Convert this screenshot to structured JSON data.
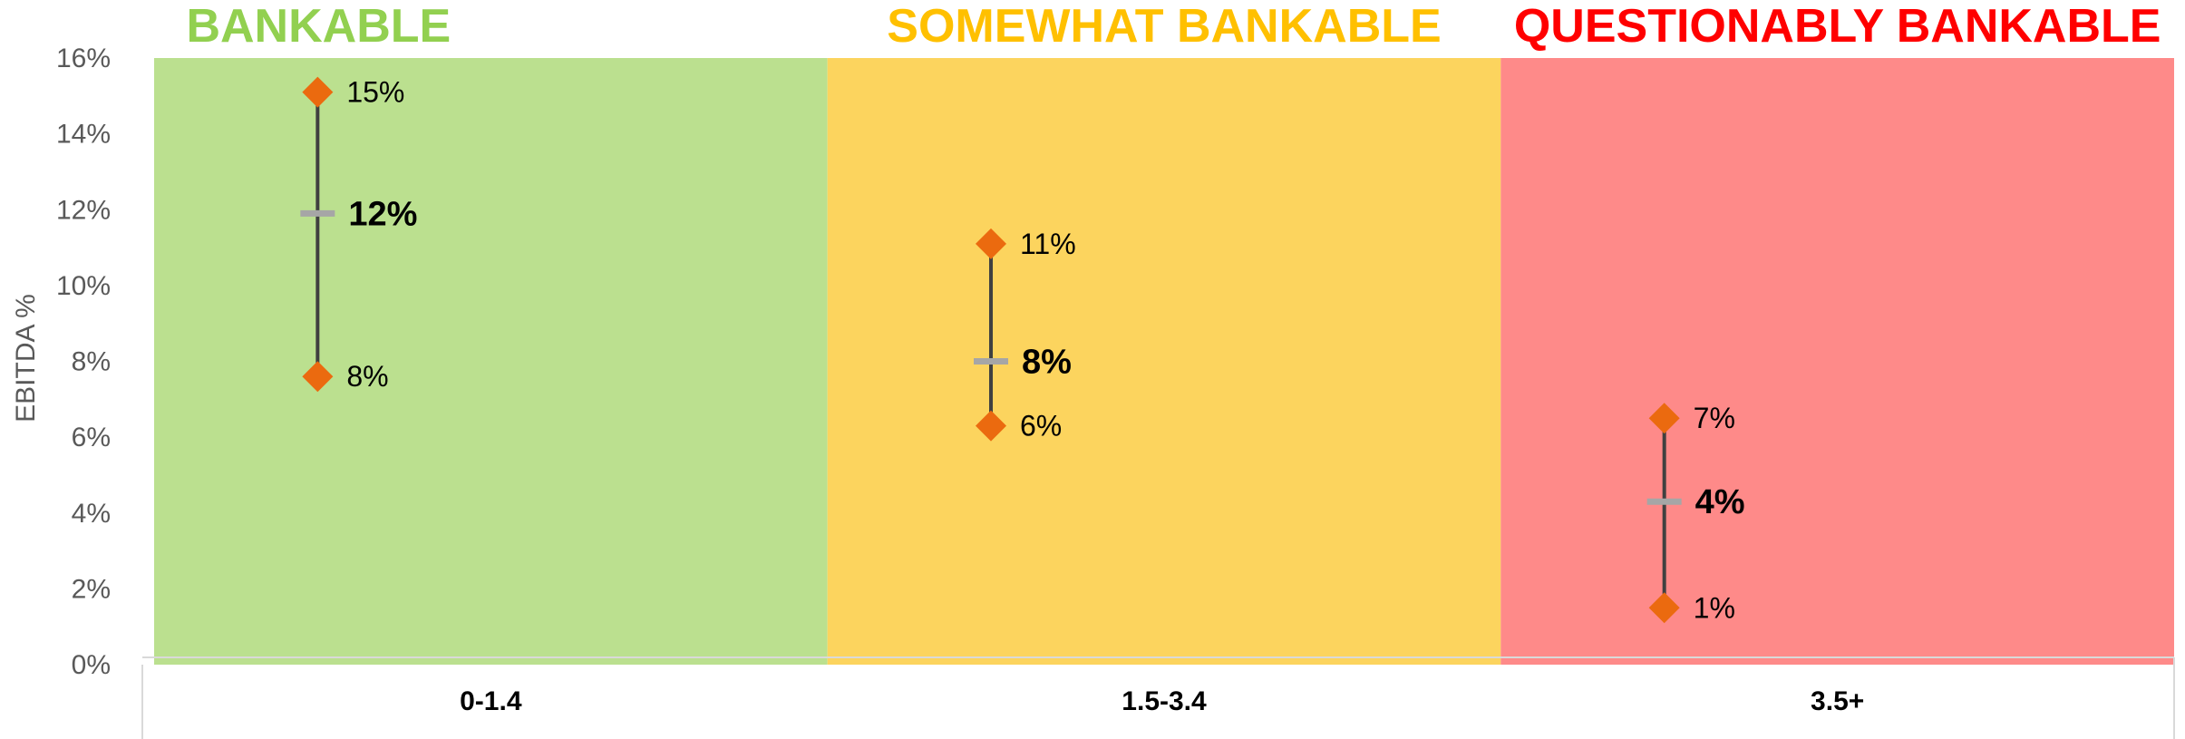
{
  "chart_data": {
    "type": "range",
    "ylabel": "EBITDA %",
    "ylim": [
      0,
      0.16
    ],
    "yticks": [
      {
        "value": 0,
        "label": "0%"
      },
      {
        "value": 0.02,
        "label": "2%"
      },
      {
        "value": 0.04,
        "label": "4%"
      },
      {
        "value": 0.06,
        "label": "6%"
      },
      {
        "value": 0.08,
        "label": "8%"
      },
      {
        "value": 0.1,
        "label": "10%"
      },
      {
        "value": 0.12,
        "label": "12%"
      },
      {
        "value": 0.14,
        "label": "14%"
      },
      {
        "value": 0.16,
        "label": "16%"
      }
    ],
    "grid": false,
    "categories": [
      "0-1.4",
      "1.5-3.4",
      "3.5+"
    ],
    "zones": [
      {
        "title": "BANKABLE",
        "title_color": "#92D050",
        "fill": "#BBE08F"
      },
      {
        "title": "SOMEWHAT BANKABLE",
        "title_color": "#FFC000",
        "fill": "#FCD45E"
      },
      {
        "title": "QUESTIONABLY BANKABLE",
        "title_color": "#FF0000",
        "fill": "#FE8A89"
      }
    ],
    "series": [
      {
        "high": [
          0.151,
          0.111,
          0.065
        ],
        "mid": [
          0.119,
          0.08,
          0.043
        ],
        "low": [
          0.076,
          0.063,
          0.015
        ],
        "high_labels": [
          "15%",
          "11%",
          "7%"
        ],
        "mid_labels": [
          "12%",
          "8%",
          "4%"
        ],
        "low_labels": [
          "8%",
          "6%",
          "1%"
        ]
      }
    ],
    "colors": {
      "marker": "#EB6A0F",
      "mid_marker": "#A6A6A6",
      "range_line": "#404040",
      "axis_text": "#595959",
      "plot_border": "#D9D9D9"
    }
  }
}
